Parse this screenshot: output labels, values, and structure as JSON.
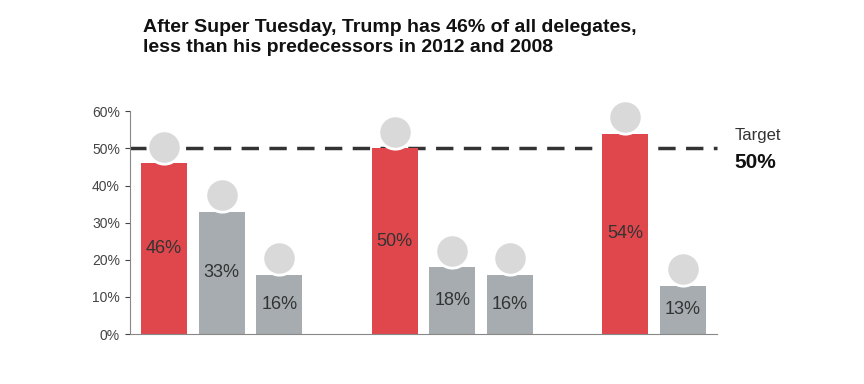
{
  "chart_data": {
    "type": "bar",
    "title": "After Super Tuesday, Trump has 46% of all delegates,\nless than his predecessors in 2012 and 2008",
    "categories": [
      null,
      null,
      null,
      null,
      null,
      null,
      null,
      null,
      null,
      null
    ],
    "values": [
      46,
      33,
      16,
      null,
      50,
      18,
      16,
      null,
      54,
      13
    ],
    "value_labels": [
      "46%",
      "33%",
      "16%",
      null,
      "50%",
      "18%",
      "16%",
      null,
      "54%",
      "13%"
    ],
    "colors": [
      "#e0474c",
      "#a6acaf",
      "#a6acaf",
      null,
      "#e0474c",
      "#a6acaf",
      "#a6acaf",
      null,
      "#e0474c",
      "#a6acaf"
    ],
    "data_labels": true,
    "ylim": [
      0,
      60
    ],
    "yticks": [
      {
        "value": 0,
        "label": "0%"
      },
      {
        "value": 10,
        "label": "10%"
      },
      {
        "value": 20,
        "label": "20%"
      },
      {
        "value": 30,
        "label": "30%"
      },
      {
        "value": 40,
        "label": "40%"
      },
      {
        "value": 50,
        "label": "50%"
      },
      {
        "value": 60,
        "label": "60%"
      }
    ],
    "grid": false,
    "target_line": {
      "value": 50,
      "label": "Target",
      "value_label": "50%"
    }
  }
}
